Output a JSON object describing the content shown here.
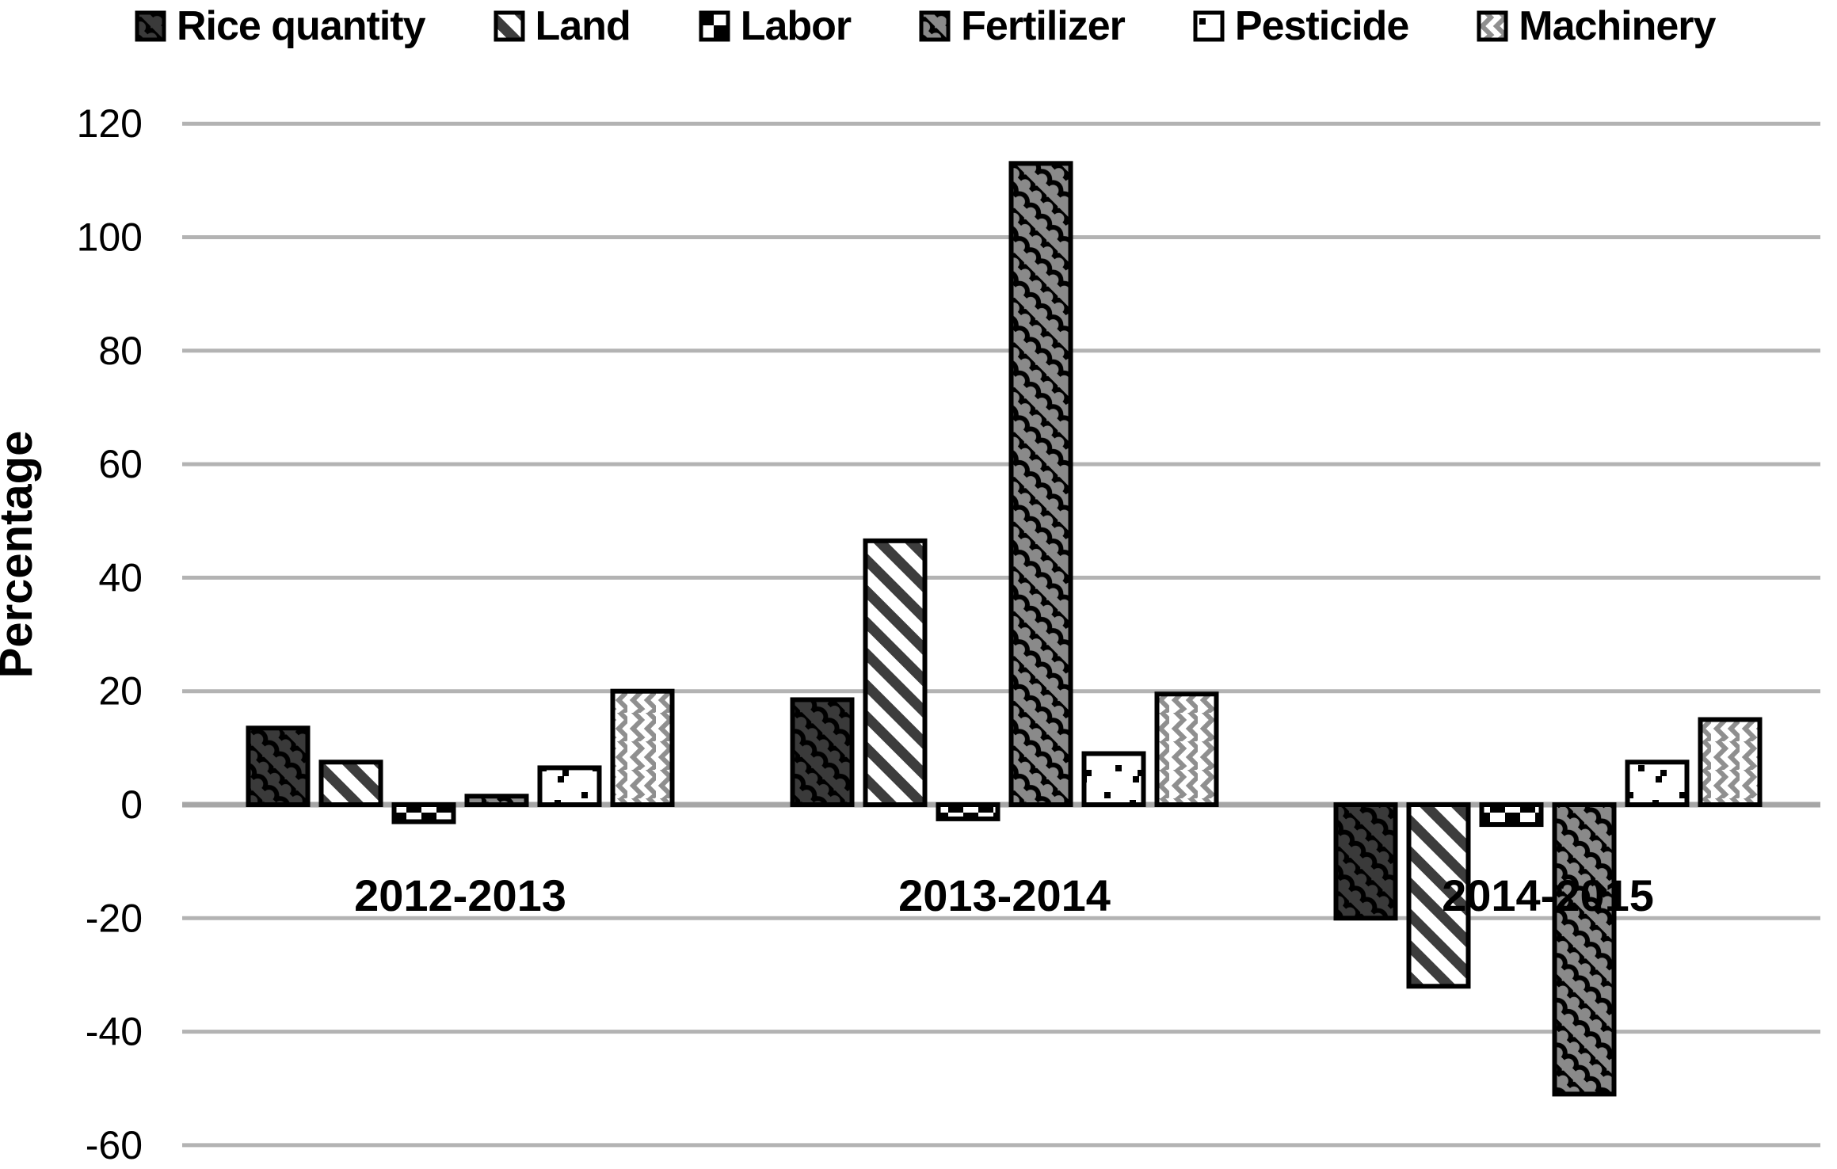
{
  "chart_data": {
    "type": "bar",
    "title": "",
    "xlabel": "",
    "ylabel": "Percentage",
    "categories": [
      "2012-2013",
      "2013-2014",
      "2014-2015"
    ],
    "series": [
      {
        "name": "Rice quantity",
        "pattern": "shingle-dark",
        "values": [
          13.5,
          18.5,
          -20
        ]
      },
      {
        "name": "Land",
        "pattern": "diagonal-stripe",
        "values": [
          7.5,
          46.5,
          -32
        ]
      },
      {
        "name": "Labor",
        "pattern": "checkerboard",
        "values": [
          -3,
          -2.5,
          -3.5
        ]
      },
      {
        "name": "Fertilizer",
        "pattern": "shingle-gray",
        "values": [
          1.5,
          113,
          -51
        ]
      },
      {
        "name": "Pesticide",
        "pattern": "sparse-dots",
        "values": [
          6.5,
          9,
          7.5
        ]
      },
      {
        "name": "Machinery",
        "pattern": "zigzag-gray",
        "values": [
          20,
          19.5,
          15
        ]
      }
    ],
    "ylim": [
      -60,
      120
    ],
    "ytick_step": 20,
    "yticks": [
      120,
      100,
      80,
      60,
      40,
      20,
      0,
      -20,
      -40,
      -60
    ],
    "grid": true,
    "legend_position": "top",
    "colors": {
      "background": "#ffffff",
      "grid_line": "#b3b3b3",
      "axis_line": "#a6a6a6",
      "bar_border": "#000000",
      "dark_fill": "#3a3a3a",
      "gray_fill": "#8a8a8a",
      "pattern_gray": "#8f8f8f",
      "stripe_dark": "#3d3d3d",
      "text": "#000000"
    }
  }
}
